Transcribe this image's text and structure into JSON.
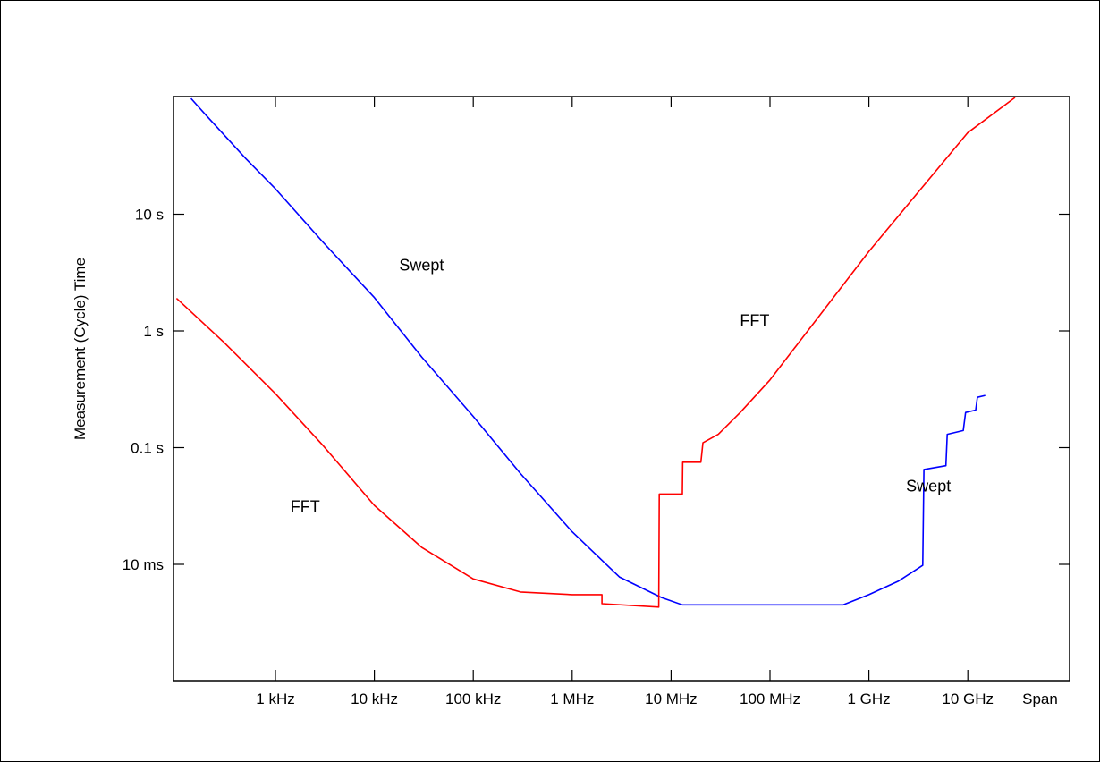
{
  "chart_data": {
    "type": "line",
    "title": "",
    "xlabel": "Span",
    "ylabel": "Measurement (Cycle) Time",
    "x_scale": "log",
    "y_scale": "log",
    "x_range_hz": [
      100,
      50000000000
    ],
    "y_range_s": [
      0.001,
      100
    ],
    "x_ticks": [
      {
        "value": 1000,
        "label": "1 kHz"
      },
      {
        "value": 10000,
        "label": "10 kHz"
      },
      {
        "value": 100000,
        "label": "100 kHz"
      },
      {
        "value": 1000000,
        "label": "1 MHz"
      },
      {
        "value": 10000000,
        "label": "10 MHz"
      },
      {
        "value": 100000000,
        "label": "100 MHz"
      },
      {
        "value": 1000000000,
        "label": "1 GHz"
      },
      {
        "value": 10000000000,
        "label": "10 GHz"
      }
    ],
    "y_ticks": [
      {
        "value": 10,
        "label": "10 s"
      },
      {
        "value": 1,
        "label": "1 s"
      },
      {
        "value": 0.1,
        "label": "0.1 s"
      },
      {
        "value": 0.01,
        "label": "10 ms"
      }
    ],
    "grid": false,
    "series": [
      {
        "name": "Swept",
        "color": "#0000ff",
        "points": [
          [
            140,
            98
          ],
          [
            200,
            70
          ],
          [
            500,
            30
          ],
          [
            1000,
            16.5
          ],
          [
            3000,
            5.8
          ],
          [
            10000,
            1.93
          ],
          [
            30000,
            0.6
          ],
          [
            100000,
            0.185
          ],
          [
            300000,
            0.06
          ],
          [
            1000000,
            0.019
          ],
          [
            3000000,
            0.0078
          ],
          [
            8000000,
            0.0052
          ],
          [
            13000000,
            0.0045
          ],
          [
            300000000,
            0.0045
          ],
          [
            550000000,
            0.0045
          ],
          [
            1000000000,
            0.0055
          ],
          [
            2000000000,
            0.0072
          ],
          [
            3500000000,
            0.0098
          ],
          [
            3600000000,
            0.065
          ],
          [
            6000000000,
            0.07
          ],
          [
            6200000000,
            0.13
          ],
          [
            9000000000,
            0.14
          ],
          [
            9500000000,
            0.2
          ],
          [
            12000000000,
            0.21
          ],
          [
            12500000000,
            0.27
          ],
          [
            15000000000,
            0.28
          ]
        ]
      },
      {
        "name": "FFT",
        "color": "#ff0000",
        "points": [
          [
            100,
            1.9
          ],
          [
            300,
            0.8
          ],
          [
            1000,
            0.29
          ],
          [
            3000,
            0.105
          ],
          [
            10000,
            0.032
          ],
          [
            30000,
            0.014
          ],
          [
            100000,
            0.0075
          ],
          [
            300000,
            0.0058
          ],
          [
            1000000,
            0.0055
          ],
          [
            2000000,
            0.0055
          ],
          [
            2000000,
            0.0046
          ],
          [
            7500000,
            0.0043
          ],
          [
            7600000,
            0.04
          ],
          [
            13000000,
            0.04
          ],
          [
            13100000,
            0.075
          ],
          [
            20000000,
            0.075
          ],
          [
            21000000,
            0.11
          ],
          [
            30000000,
            0.13
          ],
          [
            50000000,
            0.2
          ],
          [
            100000000,
            0.38
          ],
          [
            1000000000,
            4.8
          ],
          [
            10000000000,
            50
          ],
          [
            30000000000,
            100
          ]
        ]
      }
    ],
    "annotations": [
      {
        "text": "Swept",
        "x": 30000,
        "y": 3.3
      },
      {
        "text": "FFT",
        "x": 70000000,
        "y": 1.1
      },
      {
        "text": "FFT",
        "x": 2000,
        "y": 0.028
      },
      {
        "text": "Swept",
        "x": 4000000000,
        "y": 0.042
      }
    ]
  }
}
